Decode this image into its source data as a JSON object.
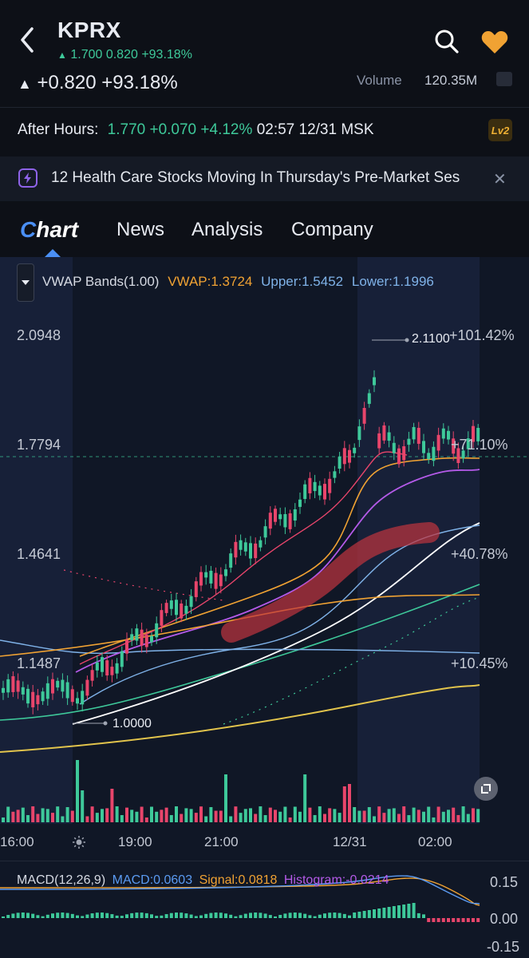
{
  "header": {
    "ticker": "KPRX",
    "sub_quote": "1.700 0.820 +93.18%",
    "change": "+0.820 +93.18%",
    "volume_label": "Volume",
    "volume_value": "120.35M"
  },
  "after_hours": {
    "label": "After Hours:",
    "price": "1.770",
    "change": "+0.070",
    "pct": "+4.12%",
    "time": "02:57 12/31 MSK",
    "badge": "Lv2"
  },
  "news": {
    "headline": "12 Health Care Stocks Moving In Thursday's Pre-Market Ses"
  },
  "tabs": [
    {
      "label": "Chart",
      "c": "C",
      "rest": "hart"
    },
    {
      "label": "News"
    },
    {
      "label": "Analysis"
    },
    {
      "label": "Company"
    }
  ],
  "indicator": {
    "name": "VWAP Bands(1.00)",
    "vwap": "VWAP:1.3724",
    "upper": "Upper:1.5452",
    "lower": "Lower:1.1996"
  },
  "price_axis": [
    "2.0948",
    "1.7794",
    "1.4641",
    "1.1487"
  ],
  "pct_axis": [
    "+101.42%",
    "+71.10%",
    "+40.78%",
    "+10.45%"
  ],
  "annotations": {
    "high": "2.1100",
    "low": "1.0000"
  },
  "time_axis": [
    "16:00",
    "19:00",
    "21:00",
    "12/31",
    "02:00"
  ],
  "macd": {
    "name": "MACD(12,26,9)",
    "macd": "MACD:0.0603",
    "signal": "Signal:0.0818",
    "histogram": "Histogram:-0.0214",
    "scale": [
      "0.15",
      "0.00",
      "-0.15"
    ]
  },
  "colors": {
    "up": "#3ec99a",
    "down": "#e8456b",
    "accent": "#4a8ff5",
    "vwap": "#f0a233",
    "fav": "#f0a233"
  },
  "icons": [
    "back-icon",
    "search-icon",
    "heart-icon",
    "lightning-icon",
    "close-icon",
    "caret-down-icon",
    "expand-icon",
    "sun-icon"
  ]
}
